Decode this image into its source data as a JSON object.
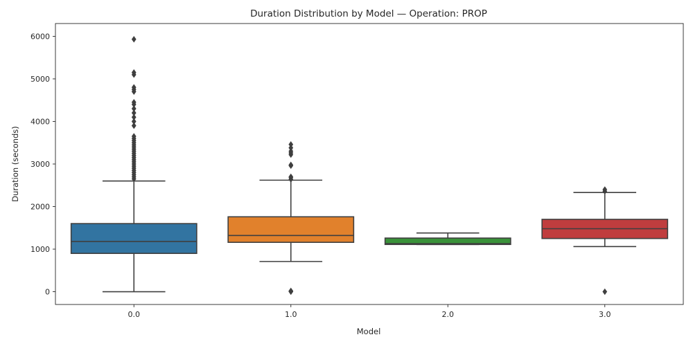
{
  "chart_data": {
    "type": "box",
    "title": "Duration Distribution by Model — Operation: PROP",
    "xlabel": "Model",
    "ylabel": "Duration (seconds)",
    "ylim": [
      -300,
      6300
    ],
    "yticks": [
      0,
      1000,
      2000,
      3000,
      4000,
      5000,
      6000
    ],
    "grid": false,
    "categories": [
      "0.0",
      "1.0",
      "2.0",
      "3.0"
    ],
    "boxes": [
      {
        "category": "0.0",
        "color": "#3274a1",
        "whisker_low": 0,
        "q1": 900,
        "median": 1180,
        "q3": 1600,
        "whisker_high": 2600,
        "outliers": [
          2650,
          2700,
          2750,
          2800,
          2850,
          2900,
          2950,
          3000,
          3050,
          3100,
          3150,
          3200,
          3250,
          3300,
          3350,
          3400,
          3450,
          3500,
          3550,
          3600,
          3650,
          3900,
          4000,
          4100,
          4200,
          4300,
          4400,
          4450,
          4700,
          4750,
          4800,
          5100,
          5150,
          5930
        ]
      },
      {
        "category": "1.0",
        "color": "#e1812c",
        "whisker_low": 710,
        "q1": 1160,
        "median": 1320,
        "q3": 1760,
        "whisker_high": 2620,
        "outliers": [
          0,
          10,
          20,
          2640,
          2680,
          2700,
          2960,
          2980,
          3220,
          3260,
          3300,
          3380,
          3460
        ]
      },
      {
        "category": "2.0",
        "color": "#3a923a",
        "whisker_low": 1110,
        "q1": 1110,
        "median": 1130,
        "q3": 1260,
        "whisker_high": 1380,
        "outliers": []
      },
      {
        "category": "3.0",
        "color": "#c03d3e",
        "whisker_low": 1060,
        "q1": 1250,
        "median": 1480,
        "q3": 1700,
        "whisker_high": 2330,
        "outliers": [
          0,
          2360,
          2400
        ]
      }
    ]
  }
}
